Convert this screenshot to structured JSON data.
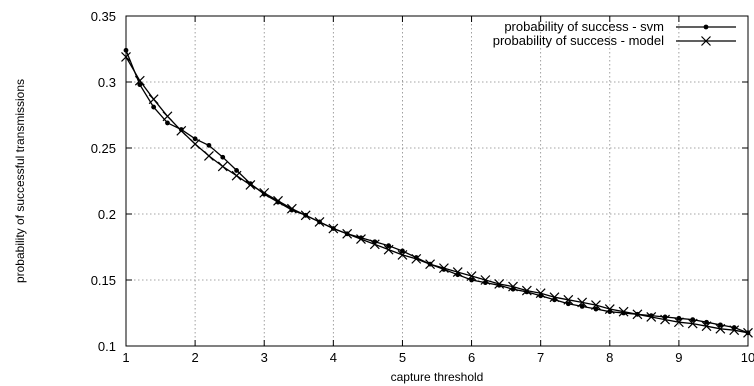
{
  "chart_data": {
    "type": "line",
    "title": "",
    "xlabel": "capture threshold",
    "ylabel": "probability of successful transmissions",
    "xlim": [
      1,
      10
    ],
    "ylim": [
      0.1,
      0.35
    ],
    "xticks": [
      1,
      2,
      3,
      4,
      5,
      6,
      7,
      8,
      9,
      10
    ],
    "yticks": [
      0.1,
      0.15,
      0.2,
      0.25,
      0.3,
      0.35
    ],
    "grid": true,
    "legend_position": "top-right",
    "series": [
      {
        "name": "probability of success - svm",
        "marker": "dot",
        "x": [
          1.0,
          1.2,
          1.4,
          1.6,
          1.8,
          2.0,
          2.2,
          2.4,
          2.6,
          2.8,
          3.0,
          3.2,
          3.4,
          3.6,
          3.8,
          4.0,
          4.2,
          4.4,
          4.6,
          4.8,
          5.0,
          5.2,
          5.4,
          5.6,
          5.8,
          6.0,
          6.2,
          6.4,
          6.6,
          6.8,
          7.0,
          7.2,
          7.4,
          7.6,
          7.8,
          8.0,
          8.2,
          8.4,
          8.6,
          8.8,
          9.0,
          9.2,
          9.4,
          9.6,
          9.8,
          10.0
        ],
        "y": [
          0.324,
          0.298,
          0.281,
          0.269,
          0.264,
          0.257,
          0.252,
          0.243,
          0.233,
          0.223,
          0.215,
          0.209,
          0.203,
          0.199,
          0.194,
          0.189,
          0.185,
          0.182,
          0.179,
          0.176,
          0.172,
          0.167,
          0.162,
          0.158,
          0.154,
          0.15,
          0.148,
          0.146,
          0.143,
          0.141,
          0.138,
          0.135,
          0.132,
          0.13,
          0.128,
          0.126,
          0.125,
          0.124,
          0.123,
          0.122,
          0.121,
          0.12,
          0.118,
          0.116,
          0.114,
          0.11
        ]
      },
      {
        "name": "probability of success - model",
        "marker": "cross",
        "x": [
          1.0,
          1.2,
          1.4,
          1.6,
          1.8,
          2.0,
          2.2,
          2.4,
          2.6,
          2.8,
          3.0,
          3.2,
          3.4,
          3.6,
          3.8,
          4.0,
          4.2,
          4.4,
          4.6,
          4.8,
          5.0,
          5.2,
          5.4,
          5.6,
          5.8,
          6.0,
          6.2,
          6.4,
          6.6,
          6.8,
          7.0,
          7.2,
          7.4,
          7.6,
          7.8,
          8.0,
          8.2,
          8.4,
          8.6,
          8.8,
          9.0,
          9.2,
          9.4,
          9.6,
          9.8,
          10.0
        ],
        "y": [
          0.319,
          0.301,
          0.287,
          0.274,
          0.263,
          0.253,
          0.244,
          0.236,
          0.229,
          0.222,
          0.216,
          0.21,
          0.204,
          0.199,
          0.194,
          0.189,
          0.185,
          0.181,
          0.177,
          0.173,
          0.169,
          0.166,
          0.162,
          0.159,
          0.156,
          0.153,
          0.15,
          0.147,
          0.145,
          0.142,
          0.14,
          0.137,
          0.135,
          0.133,
          0.131,
          0.128,
          0.126,
          0.124,
          0.122,
          0.12,
          0.118,
          0.117,
          0.115,
          0.113,
          0.112,
          0.11
        ]
      }
    ]
  }
}
